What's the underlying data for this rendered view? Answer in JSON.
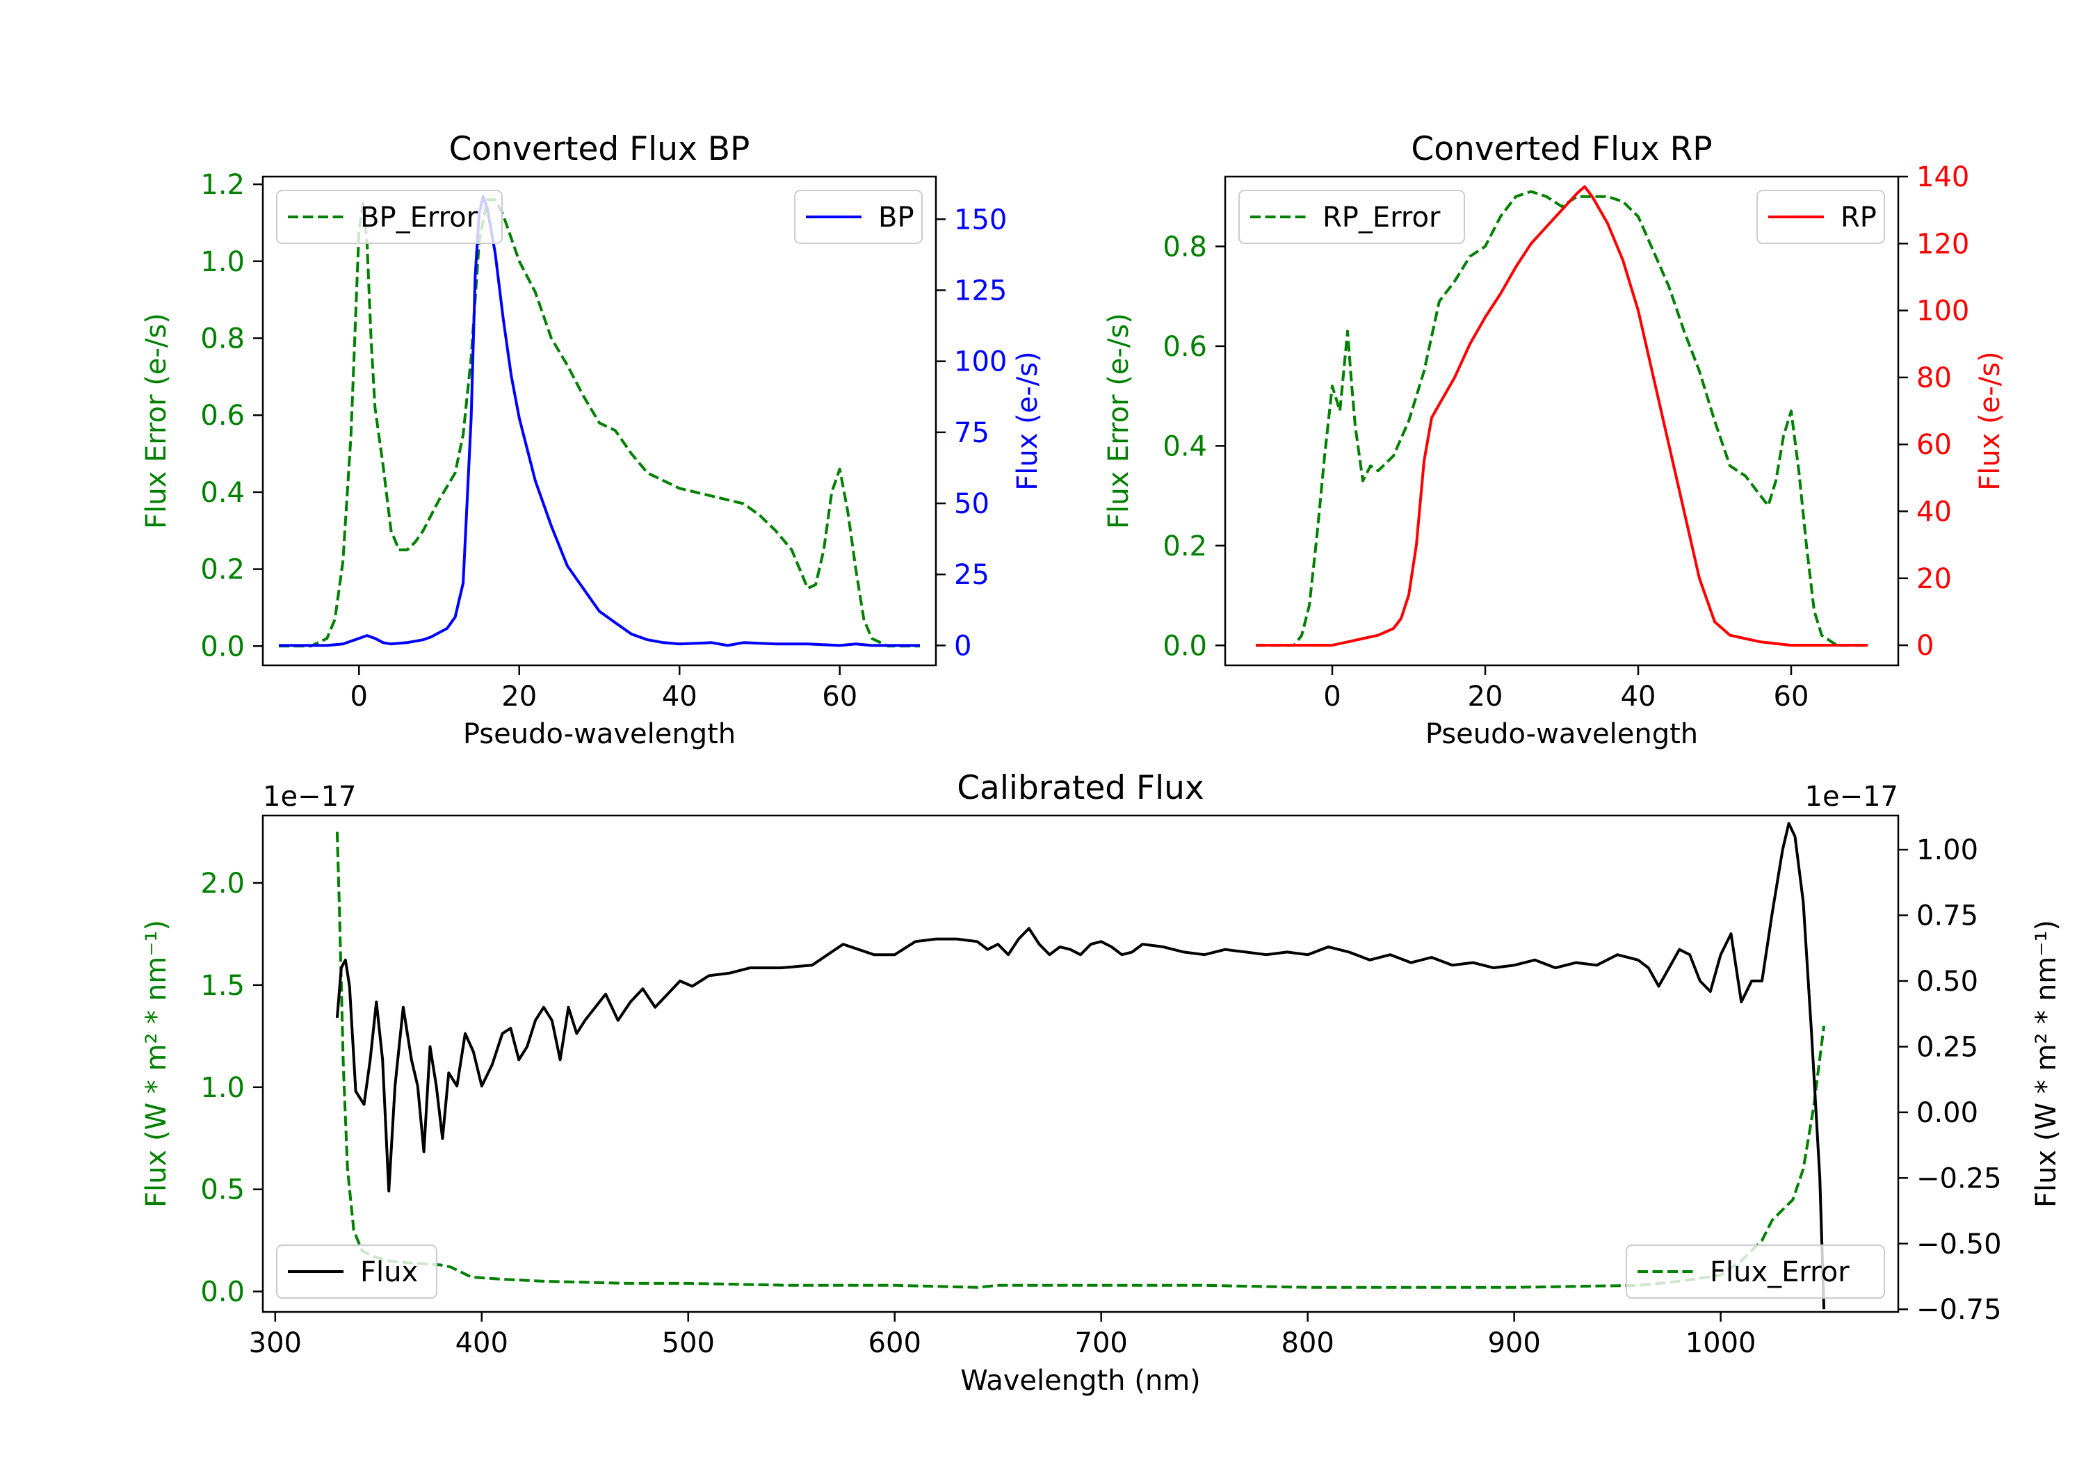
{
  "colors": {
    "error": "#008000",
    "bp": "#0000ff",
    "rp": "#ff0000",
    "flux": "#000000",
    "axis": "#000000"
  },
  "chart_data": [
    {
      "id": "bp",
      "type": "line",
      "title": "Converted Flux BP",
      "xlabel": "Pseudo-wavelength",
      "ylabel_left": "Flux Error (e-/s)",
      "ylabel_right": "Flux (e-/s)",
      "xlim": [
        -12,
        72
      ],
      "ylim_left": [
        -0.05,
        1.22
      ],
      "ylim_right": [
        -7,
        165
      ],
      "xticks": [
        0,
        20,
        40,
        60
      ],
      "xtick_labels": [
        "0",
        "20",
        "40",
        "60"
      ],
      "yticks_left": [
        0.0,
        0.2,
        0.4,
        0.6,
        0.8,
        1.0,
        1.2
      ],
      "ytick_labels_left": [
        "0.0",
        "0.2",
        "0.4",
        "0.6",
        "0.8",
        "1.0",
        "1.2"
      ],
      "yticks_right": [
        0,
        25,
        50,
        75,
        100,
        125,
        150
      ],
      "ytick_labels_right": [
        "0",
        "25",
        "50",
        "75",
        "100",
        "125",
        "150"
      ],
      "series": [
        {
          "name": "BP_Error",
          "axis": "left",
          "style": "dashed",
          "color": "#008000",
          "x": [
            -10,
            -6,
            -4,
            -3,
            -2,
            -1,
            0,
            0.5,
            1,
            1.5,
            2,
            3,
            4,
            5,
            6,
            7,
            8,
            10,
            12,
            13,
            14,
            15,
            16,
            17,
            18,
            20,
            22,
            24,
            26,
            28,
            30,
            32,
            34,
            36,
            38,
            40,
            42,
            44,
            46,
            48,
            50,
            52,
            54,
            55,
            56,
            57,
            58,
            59,
            60,
            61,
            62,
            63,
            64,
            66,
            68,
            70
          ],
          "y": [
            0,
            0,
            0.02,
            0.07,
            0.22,
            0.55,
            1.08,
            1.15,
            1.05,
            0.8,
            0.62,
            0.47,
            0.3,
            0.25,
            0.25,
            0.27,
            0.3,
            0.38,
            0.45,
            0.55,
            0.75,
            1.05,
            1.16,
            1.16,
            1.12,
            1.0,
            0.92,
            0.8,
            0.73,
            0.65,
            0.58,
            0.56,
            0.5,
            0.45,
            0.43,
            0.41,
            0.4,
            0.39,
            0.38,
            0.37,
            0.34,
            0.3,
            0.25,
            0.2,
            0.15,
            0.16,
            0.25,
            0.4,
            0.46,
            0.35,
            0.2,
            0.07,
            0.02,
            0,
            0,
            0
          ]
        },
        {
          "name": "BP",
          "axis": "right",
          "style": "solid",
          "color": "#0000ff",
          "x": [
            -10,
            -4,
            -2,
            0,
            1,
            2,
            3,
            4,
            6,
            8,
            9,
            10,
            11,
            12,
            13,
            14,
            14.5,
            15,
            15.5,
            16,
            17,
            18,
            19,
            20,
            22,
            24,
            26,
            28,
            30,
            32,
            34,
            36,
            38,
            40,
            44,
            46,
            48,
            52,
            56,
            60,
            62,
            64,
            66,
            70
          ],
          "y": [
            0,
            0,
            0.5,
            2.5,
            3.5,
            2.5,
            1,
            0.5,
            1,
            2,
            3,
            4.5,
            6,
            10,
            22,
            80,
            130,
            152,
            158,
            154,
            138,
            115,
            95,
            80,
            58,
            42,
            28,
            20,
            12,
            8,
            4,
            2,
            1,
            0.5,
            1,
            0,
            1,
            0.5,
            0.5,
            0,
            0.5,
            0,
            0,
            0
          ]
        }
      ],
      "legends": [
        {
          "label": "BP_Error",
          "series": "BP_Error",
          "position": "upper-left"
        },
        {
          "label": "BP",
          "series": "BP",
          "position": "upper-right"
        }
      ]
    },
    {
      "id": "rp",
      "type": "line",
      "title": "Converted Flux RP",
      "xlabel": "Pseudo-wavelength",
      "ylabel_left": "Flux Error (e-/s)",
      "ylabel_right": "Flux (e-/s)",
      "xlim": [
        -14,
        74
      ],
      "ylim_left": [
        -0.04,
        0.94
      ],
      "ylim_right": [
        -6,
        140
      ],
      "xticks": [
        0,
        20,
        40,
        60
      ],
      "xtick_labels": [
        "0",
        "20",
        "40",
        "60"
      ],
      "yticks_left": [
        0.0,
        0.2,
        0.4,
        0.6,
        0.8
      ],
      "ytick_labels_left": [
        "0.0",
        "0.2",
        "0.4",
        "0.6",
        "0.8"
      ],
      "yticks_right": [
        0,
        20,
        40,
        60,
        80,
        100,
        120,
        140
      ],
      "ytick_labels_right": [
        "0",
        "20",
        "40",
        "60",
        "80",
        "100",
        "120",
        "140"
      ],
      "series": [
        {
          "name": "RP_Error",
          "axis": "left",
          "style": "dashed",
          "color": "#008000",
          "x": [
            -10,
            -5,
            -4,
            -3,
            -2,
            -1,
            0,
            1,
            1.5,
            2,
            2.5,
            3,
            4,
            5,
            6,
            8,
            10,
            12,
            14,
            16,
            18,
            20,
            22,
            24,
            26,
            28,
            30,
            32,
            34,
            36,
            38,
            40,
            42,
            44,
            46,
            48,
            50,
            52,
            54,
            56,
            57,
            58,
            59,
            60,
            61,
            62,
            63,
            64,
            66,
            70
          ],
          "y": [
            0,
            0,
            0.02,
            0.08,
            0.22,
            0.38,
            0.52,
            0.47,
            0.55,
            0.63,
            0.53,
            0.44,
            0.33,
            0.36,
            0.35,
            0.38,
            0.45,
            0.55,
            0.69,
            0.73,
            0.78,
            0.8,
            0.86,
            0.9,
            0.91,
            0.9,
            0.88,
            0.9,
            0.9,
            0.9,
            0.89,
            0.86,
            0.79,
            0.72,
            0.63,
            0.55,
            0.45,
            0.36,
            0.34,
            0.3,
            0.28,
            0.33,
            0.42,
            0.47,
            0.35,
            0.2,
            0.07,
            0.02,
            0,
            0
          ]
        },
        {
          "name": "RP",
          "axis": "right",
          "style": "solid",
          "color": "#ff0000",
          "x": [
            -10,
            -5,
            0,
            2,
            4,
            6,
            8,
            9,
            10,
            11,
            12,
            13,
            14,
            16,
            18,
            20,
            22,
            24,
            26,
            28,
            30,
            32,
            33,
            34,
            36,
            38,
            40,
            42,
            44,
            46,
            48,
            50,
            52,
            54,
            56,
            58,
            60,
            62,
            66,
            70
          ],
          "y": [
            0,
            0,
            0,
            1,
            2,
            3,
            5,
            8,
            15,
            30,
            55,
            68,
            72,
            80,
            90,
            98,
            105,
            113,
            120,
            125,
            130,
            135,
            137,
            134,
            126,
            115,
            100,
            80,
            60,
            40,
            20,
            7,
            3,
            2,
            1,
            0.5,
            0,
            0,
            0,
            0
          ]
        }
      ],
      "legends": [
        {
          "label": "RP_Error",
          "series": "RP_Error",
          "position": "upper-left"
        },
        {
          "label": "RP",
          "series": "RP",
          "position": "upper-right"
        }
      ]
    },
    {
      "id": "cal",
      "type": "line",
      "title": "Calibrated Flux",
      "xlabel": "Wavelength (nm)",
      "ylabel_left": "Flux (W * m<sup>2</sup> * nm<sup>-1</sup>)",
      "ylabel_left_text": "Flux (W * m² * nm⁻¹)",
      "ylabel_right_text": "Flux (W * m² * nm⁻¹)",
      "left_offset_text": "1e−17",
      "right_offset_text": "1e−17",
      "xlim": [
        294,
        1086
      ],
      "ylim_left": [
        -0.1,
        2.33
      ],
      "ylim_right": [
        -0.76,
        1.13
      ],
      "xticks": [
        300,
        400,
        500,
        600,
        700,
        800,
        900,
        1000
      ],
      "xtick_labels": [
        "300",
        "400",
        "500",
        "600",
        "700",
        "800",
        "900",
        "1000"
      ],
      "yticks_left": [
        0.0,
        0.5,
        1.0,
        1.5,
        2.0
      ],
      "ytick_labels_left": [
        "0.0",
        "0.5",
        "1.0",
        "1.5",
        "2.0"
      ],
      "yticks_right": [
        -0.75,
        -0.5,
        -0.25,
        0.0,
        0.25,
        0.5,
        0.75,
        1.0
      ],
      "ytick_labels_right": [
        "−0.75",
        "−0.50",
        "−0.25",
        "0.00",
        "0.25",
        "0.50",
        "0.75",
        "1.00"
      ],
      "series": [
        {
          "name": "Flux_Error",
          "axis": "left",
          "style": "dashed",
          "color": "#008000",
          "x": [
            330,
            331,
            333,
            335,
            338,
            342,
            348,
            355,
            365,
            380,
            385,
            395,
            410,
            430,
            470,
            500,
            550,
            600,
            640,
            650,
            700,
            750,
            800,
            900,
            960,
            980,
            1000,
            1010,
            1020,
            1025,
            1030,
            1035,
            1040,
            1045,
            1050
          ],
          "y": [
            2.25,
            1.9,
            1.1,
            0.6,
            0.3,
            0.2,
            0.17,
            0.15,
            0.14,
            0.13,
            0.12,
            0.07,
            0.06,
            0.05,
            0.04,
            0.04,
            0.03,
            0.03,
            0.02,
            0.03,
            0.03,
            0.03,
            0.02,
            0.02,
            0.03,
            0.05,
            0.08,
            0.15,
            0.25,
            0.35,
            0.4,
            0.45,
            0.6,
            0.9,
            1.3
          ]
        },
        {
          "name": "Flux",
          "axis": "right",
          "style": "solid",
          "color": "#000000",
          "x": [
            330,
            332,
            334,
            336,
            339,
            343,
            346,
            349,
            352,
            355,
            358,
            362,
            366,
            369,
            372,
            375,
            378,
            381,
            384,
            388,
            392,
            396,
            400,
            405,
            410,
            414,
            418,
            422,
            426,
            430,
            434,
            438,
            442,
            446,
            450,
            455,
            460,
            466,
            472,
            478,
            484,
            490,
            496,
            502,
            510,
            520,
            530,
            545,
            560,
            575,
            590,
            600,
            610,
            620,
            630,
            640,
            645,
            650,
            655,
            660,
            665,
            670,
            675,
            680,
            685,
            690,
            695,
            700,
            705,
            710,
            715,
            720,
            730,
            740,
            750,
            760,
            770,
            780,
            790,
            800,
            810,
            820,
            830,
            840,
            850,
            860,
            870,
            880,
            890,
            900,
            910,
            920,
            930,
            940,
            950,
            960,
            965,
            970,
            975,
            980,
            985,
            990,
            995,
            1000,
            1005,
            1010,
            1015,
            1020,
            1025,
            1030,
            1033,
            1036,
            1040,
            1044,
            1048,
            1050
          ],
          "y": [
            0.36,
            0.55,
            0.58,
            0.48,
            0.08,
            0.03,
            0.2,
            0.42,
            0.2,
            -0.3,
            0.1,
            0.4,
            0.2,
            0.1,
            -0.15,
            0.25,
            0.1,
            -0.1,
            0.15,
            0.1,
            0.3,
            0.23,
            0.1,
            0.18,
            0.3,
            0.32,
            0.2,
            0.25,
            0.35,
            0.4,
            0.35,
            0.2,
            0.4,
            0.3,
            0.35,
            0.4,
            0.45,
            0.35,
            0.42,
            0.47,
            0.4,
            0.45,
            0.5,
            0.48,
            0.52,
            0.53,
            0.55,
            0.55,
            0.56,
            0.64,
            0.6,
            0.6,
            0.65,
            0.66,
            0.66,
            0.65,
            0.62,
            0.64,
            0.6,
            0.66,
            0.7,
            0.64,
            0.6,
            0.63,
            0.62,
            0.6,
            0.64,
            0.65,
            0.63,
            0.6,
            0.61,
            0.64,
            0.63,
            0.61,
            0.6,
            0.62,
            0.61,
            0.6,
            0.61,
            0.6,
            0.63,
            0.61,
            0.58,
            0.6,
            0.57,
            0.59,
            0.56,
            0.57,
            0.55,
            0.56,
            0.58,
            0.55,
            0.57,
            0.56,
            0.6,
            0.58,
            0.55,
            0.48,
            0.55,
            0.62,
            0.6,
            0.5,
            0.46,
            0.6,
            0.68,
            0.42,
            0.5,
            0.5,
            0.76,
            1.0,
            1.1,
            1.05,
            0.8,
            0.3,
            -0.25,
            -0.75
          ]
        }
      ],
      "legends": [
        {
          "label": "Flux",
          "series": "Flux",
          "position": "lower-left"
        },
        {
          "label": "Flux_Error",
          "series": "Flux_Error",
          "position": "lower-right"
        }
      ]
    }
  ]
}
